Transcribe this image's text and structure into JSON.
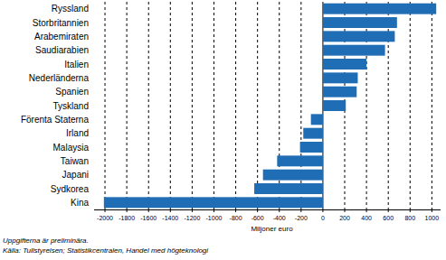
{
  "chart_data": {
    "type": "bar",
    "orientation": "horizontal",
    "categories": [
      "Ryssland",
      "Storbritannien",
      "Arabemiraten",
      "Saudiarabien",
      "Italien",
      "Nederländerna",
      "Spanien",
      "Tyskland",
      "Förenta Staterna",
      "Irland",
      "Malaysia",
      "Taiwan",
      "Japani",
      "Sydkorea",
      "Kina"
    ],
    "values": [
      1040,
      680,
      660,
      570,
      400,
      320,
      310,
      210,
      -110,
      -180,
      -210,
      -420,
      -550,
      -630,
      -2010
    ],
    "color": "#1f6db4",
    "x_label": "Miljoner euro",
    "xlim": [
      -2100,
      1080
    ],
    "xticks": [
      -2000,
      -1800,
      -1600,
      -1400,
      -1200,
      -1000,
      -800,
      -600,
      -400,
      -200,
      0,
      200,
      400,
      600,
      800,
      1000
    ],
    "grid": true,
    "annotations": [
      "Uppgifterna är preliminära.",
      "Källa: Tullstyrelsen; Statistikcentralen, Handel med högteknologi"
    ]
  }
}
